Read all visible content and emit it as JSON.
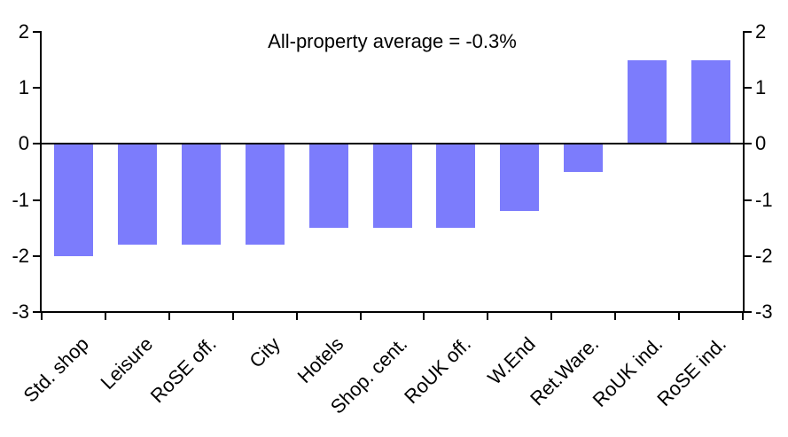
{
  "chart_data": {
    "type": "bar",
    "annotation": "All-property average = -0.3%",
    "categories": [
      "Std. shop",
      "Leisure",
      "RoSE off.",
      "City",
      "Hotels",
      "Shop. cent.",
      "RoUK off.",
      "W.End",
      "Ret.Ware.",
      "RoUK ind.",
      "RoSE ind."
    ],
    "values": [
      -2,
      -1.8,
      -1.8,
      -1.8,
      -1.5,
      -1.5,
      -1.5,
      -1.2,
      -0.5,
      1.5,
      1.5
    ],
    "ylim": [
      -3,
      2
    ],
    "yticks": [
      2,
      1,
      0,
      -1,
      -2,
      -3
    ],
    "y_axis_left": true,
    "y_axis_right": true,
    "x_label_rotation_deg": -45,
    "grid": false,
    "legend": false,
    "bar_color": "#7c7cfc",
    "axis_color": "#000000",
    "text_color": "#000000",
    "background_color": "#ffffff"
  }
}
